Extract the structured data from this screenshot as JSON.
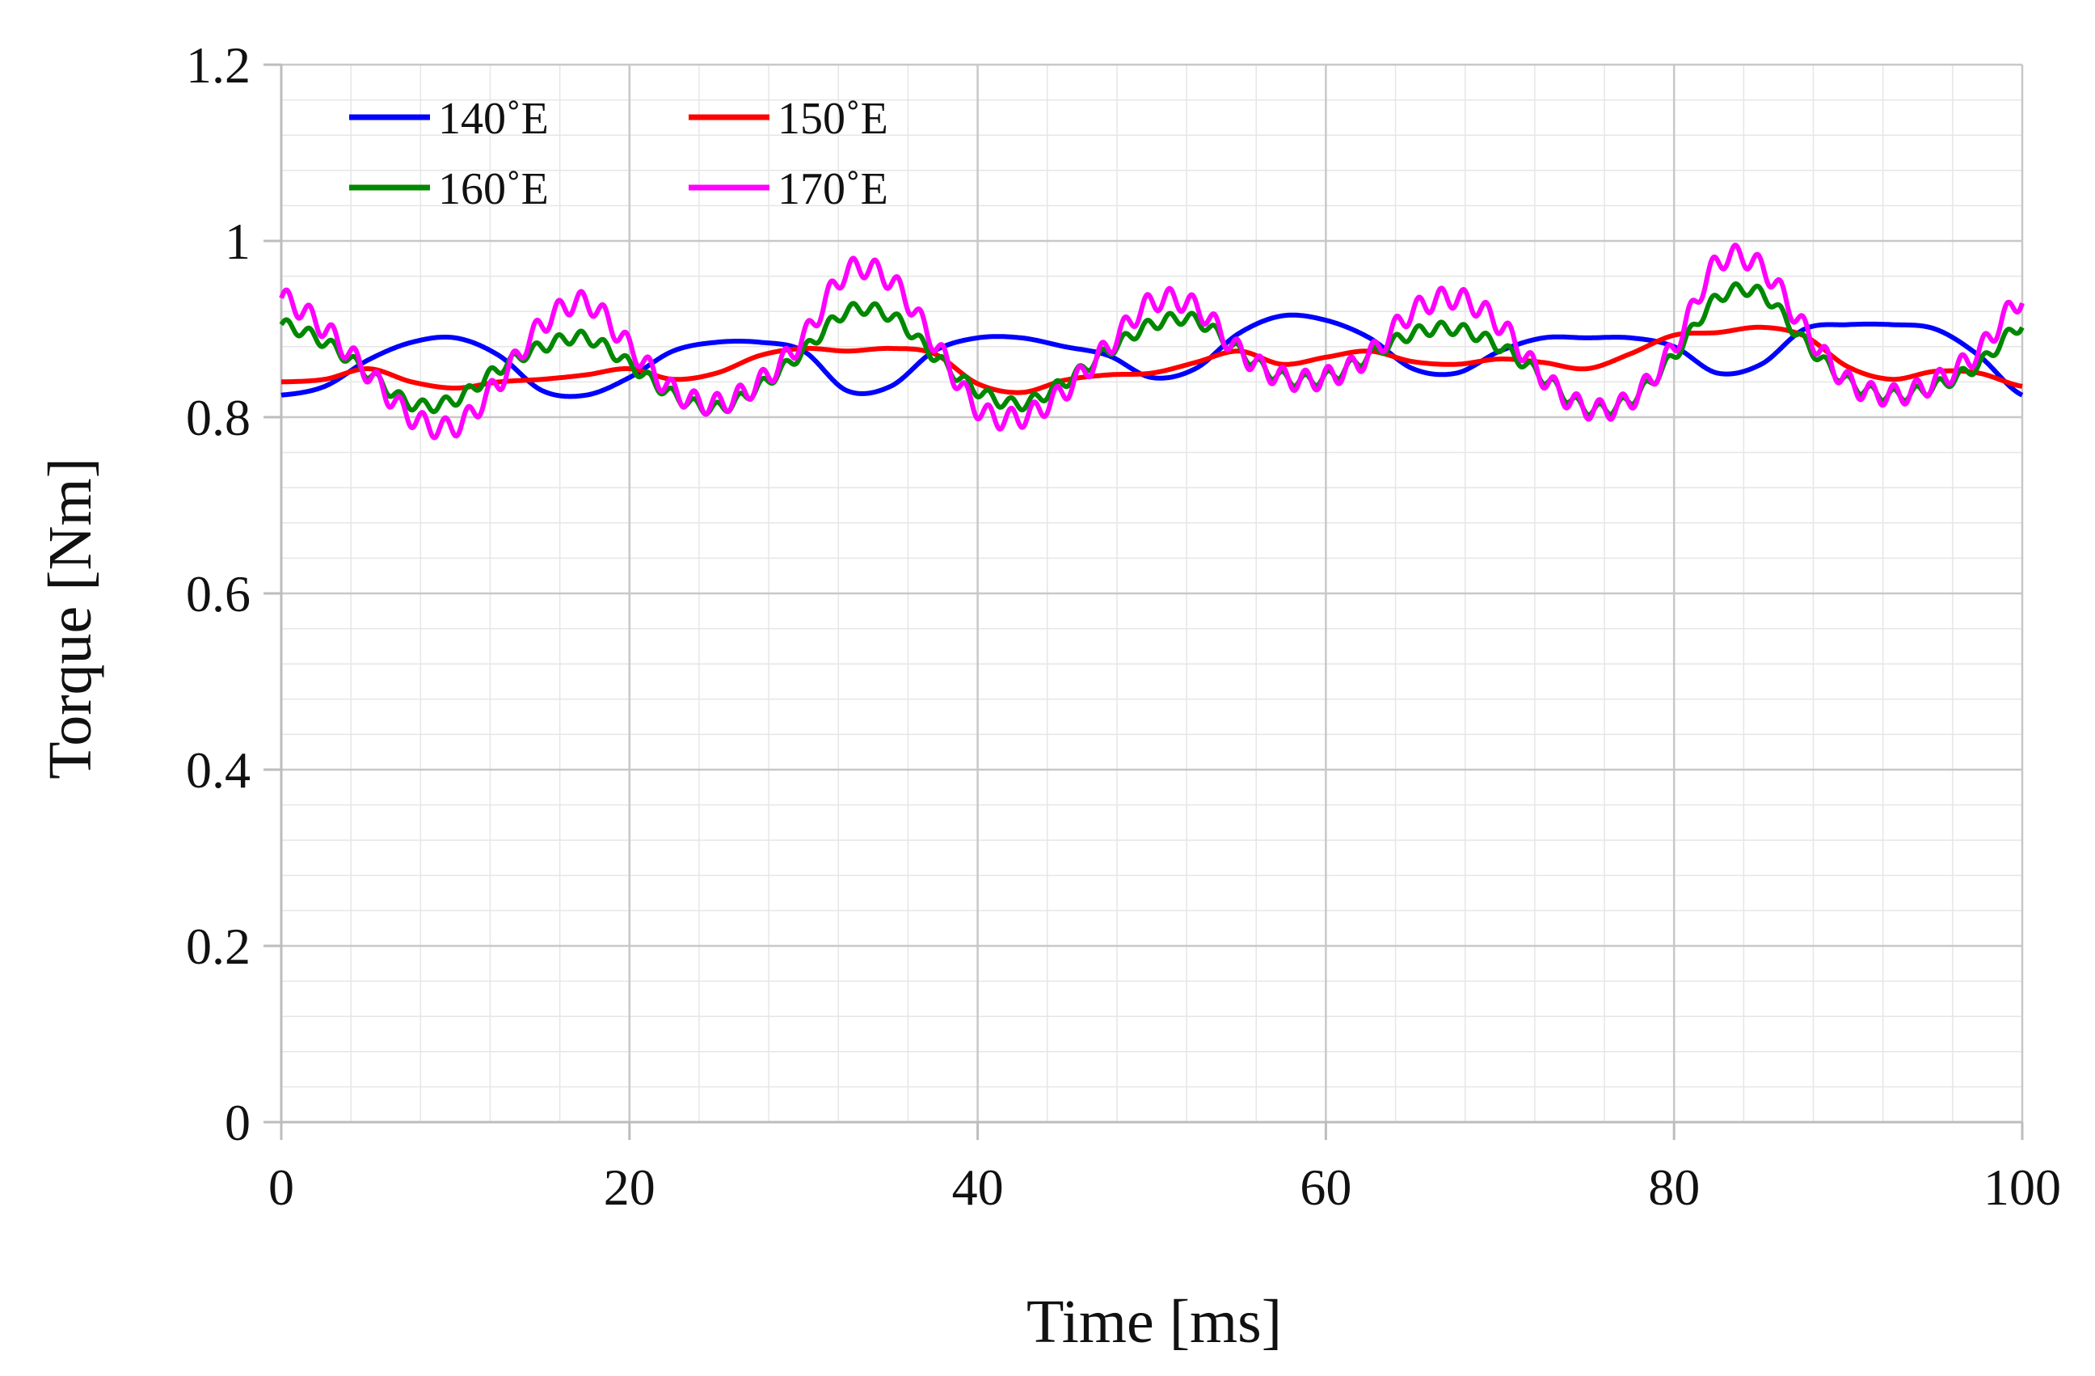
{
  "chart_data": {
    "type": "line",
    "title": "",
    "xlabel": "Time [ms]",
    "ylabel": "Torque [Nm]",
    "xlim": [
      0,
      100
    ],
    "ylim": [
      0,
      1.2
    ],
    "x_ticks": [
      0,
      20,
      40,
      60,
      80,
      100
    ],
    "x_tick_labels": [
      "0",
      "20",
      "40",
      "60",
      "80",
      "100"
    ],
    "y_ticks": [
      0,
      0.2,
      0.4,
      0.6,
      0.8,
      1.0,
      1.2
    ],
    "y_tick_labels": [
      "0",
      "0.2",
      "0.4",
      "0.6",
      "0.8",
      "1",
      "1.2"
    ],
    "grid": true,
    "legend_position": "top-left",
    "x": [
      0,
      2.5,
      5,
      7.5,
      10,
      12.5,
      15,
      17.5,
      20,
      22.5,
      25,
      27.5,
      30,
      32.5,
      35,
      37.5,
      40,
      42.5,
      45,
      47.5,
      50,
      52.5,
      55,
      57.5,
      60,
      62.5,
      65,
      67.5,
      70,
      72.5,
      75,
      77.5,
      80,
      82.5,
      85,
      87.5,
      90,
      92.5,
      95,
      97.5,
      100
    ],
    "series": [
      {
        "name": "140˚E",
        "color": "#0000ff",
        "ripple": 0.0,
        "values": [
          0.825,
          0.835,
          0.865,
          0.885,
          0.89,
          0.87,
          0.83,
          0.825,
          0.845,
          0.875,
          0.885,
          0.885,
          0.875,
          0.83,
          0.835,
          0.875,
          0.89,
          0.89,
          0.88,
          0.87,
          0.845,
          0.855,
          0.895,
          0.915,
          0.91,
          0.89,
          0.855,
          0.85,
          0.875,
          0.89,
          0.89,
          0.89,
          0.88,
          0.85,
          0.86,
          0.9,
          0.905,
          0.905,
          0.9,
          0.87,
          0.825
        ]
      },
      {
        "name": "150˚E",
        "color": "#ff0000",
        "ripple": 0.0,
        "values": [
          0.84,
          0.843,
          0.855,
          0.84,
          0.833,
          0.84,
          0.843,
          0.848,
          0.855,
          0.843,
          0.85,
          0.87,
          0.878,
          0.875,
          0.878,
          0.872,
          0.838,
          0.828,
          0.842,
          0.848,
          0.85,
          0.862,
          0.875,
          0.86,
          0.868,
          0.875,
          0.863,
          0.86,
          0.866,
          0.862,
          0.855,
          0.872,
          0.893,
          0.896,
          0.902,
          0.892,
          0.857,
          0.843,
          0.852,
          0.85,
          0.835
        ]
      },
      {
        "name": "160˚E",
        "color": "#008800",
        "ripple": 0.007,
        "values": [
          0.905,
          0.885,
          0.85,
          0.815,
          0.82,
          0.855,
          0.88,
          0.89,
          0.86,
          0.825,
          0.81,
          0.835,
          0.875,
          0.92,
          0.915,
          0.87,
          0.83,
          0.815,
          0.84,
          0.875,
          0.905,
          0.91,
          0.875,
          0.845,
          0.845,
          0.87,
          0.895,
          0.9,
          0.88,
          0.845,
          0.81,
          0.82,
          0.87,
          0.935,
          0.94,
          0.885,
          0.84,
          0.825,
          0.835,
          0.86,
          0.905
        ]
      },
      {
        "name": "170˚E",
        "color": "#ff00ff",
        "ripple": 0.012,
        "values": [
          0.935,
          0.9,
          0.85,
          0.8,
          0.79,
          0.84,
          0.905,
          0.93,
          0.88,
          0.83,
          0.815,
          0.84,
          0.89,
          0.965,
          0.955,
          0.885,
          0.81,
          0.8,
          0.83,
          0.88,
          0.93,
          0.925,
          0.875,
          0.845,
          0.845,
          0.87,
          0.92,
          0.935,
          0.905,
          0.845,
          0.81,
          0.82,
          0.88,
          0.975,
          0.97,
          0.9,
          0.84,
          0.825,
          0.84,
          0.875,
          0.935
        ]
      }
    ]
  }
}
